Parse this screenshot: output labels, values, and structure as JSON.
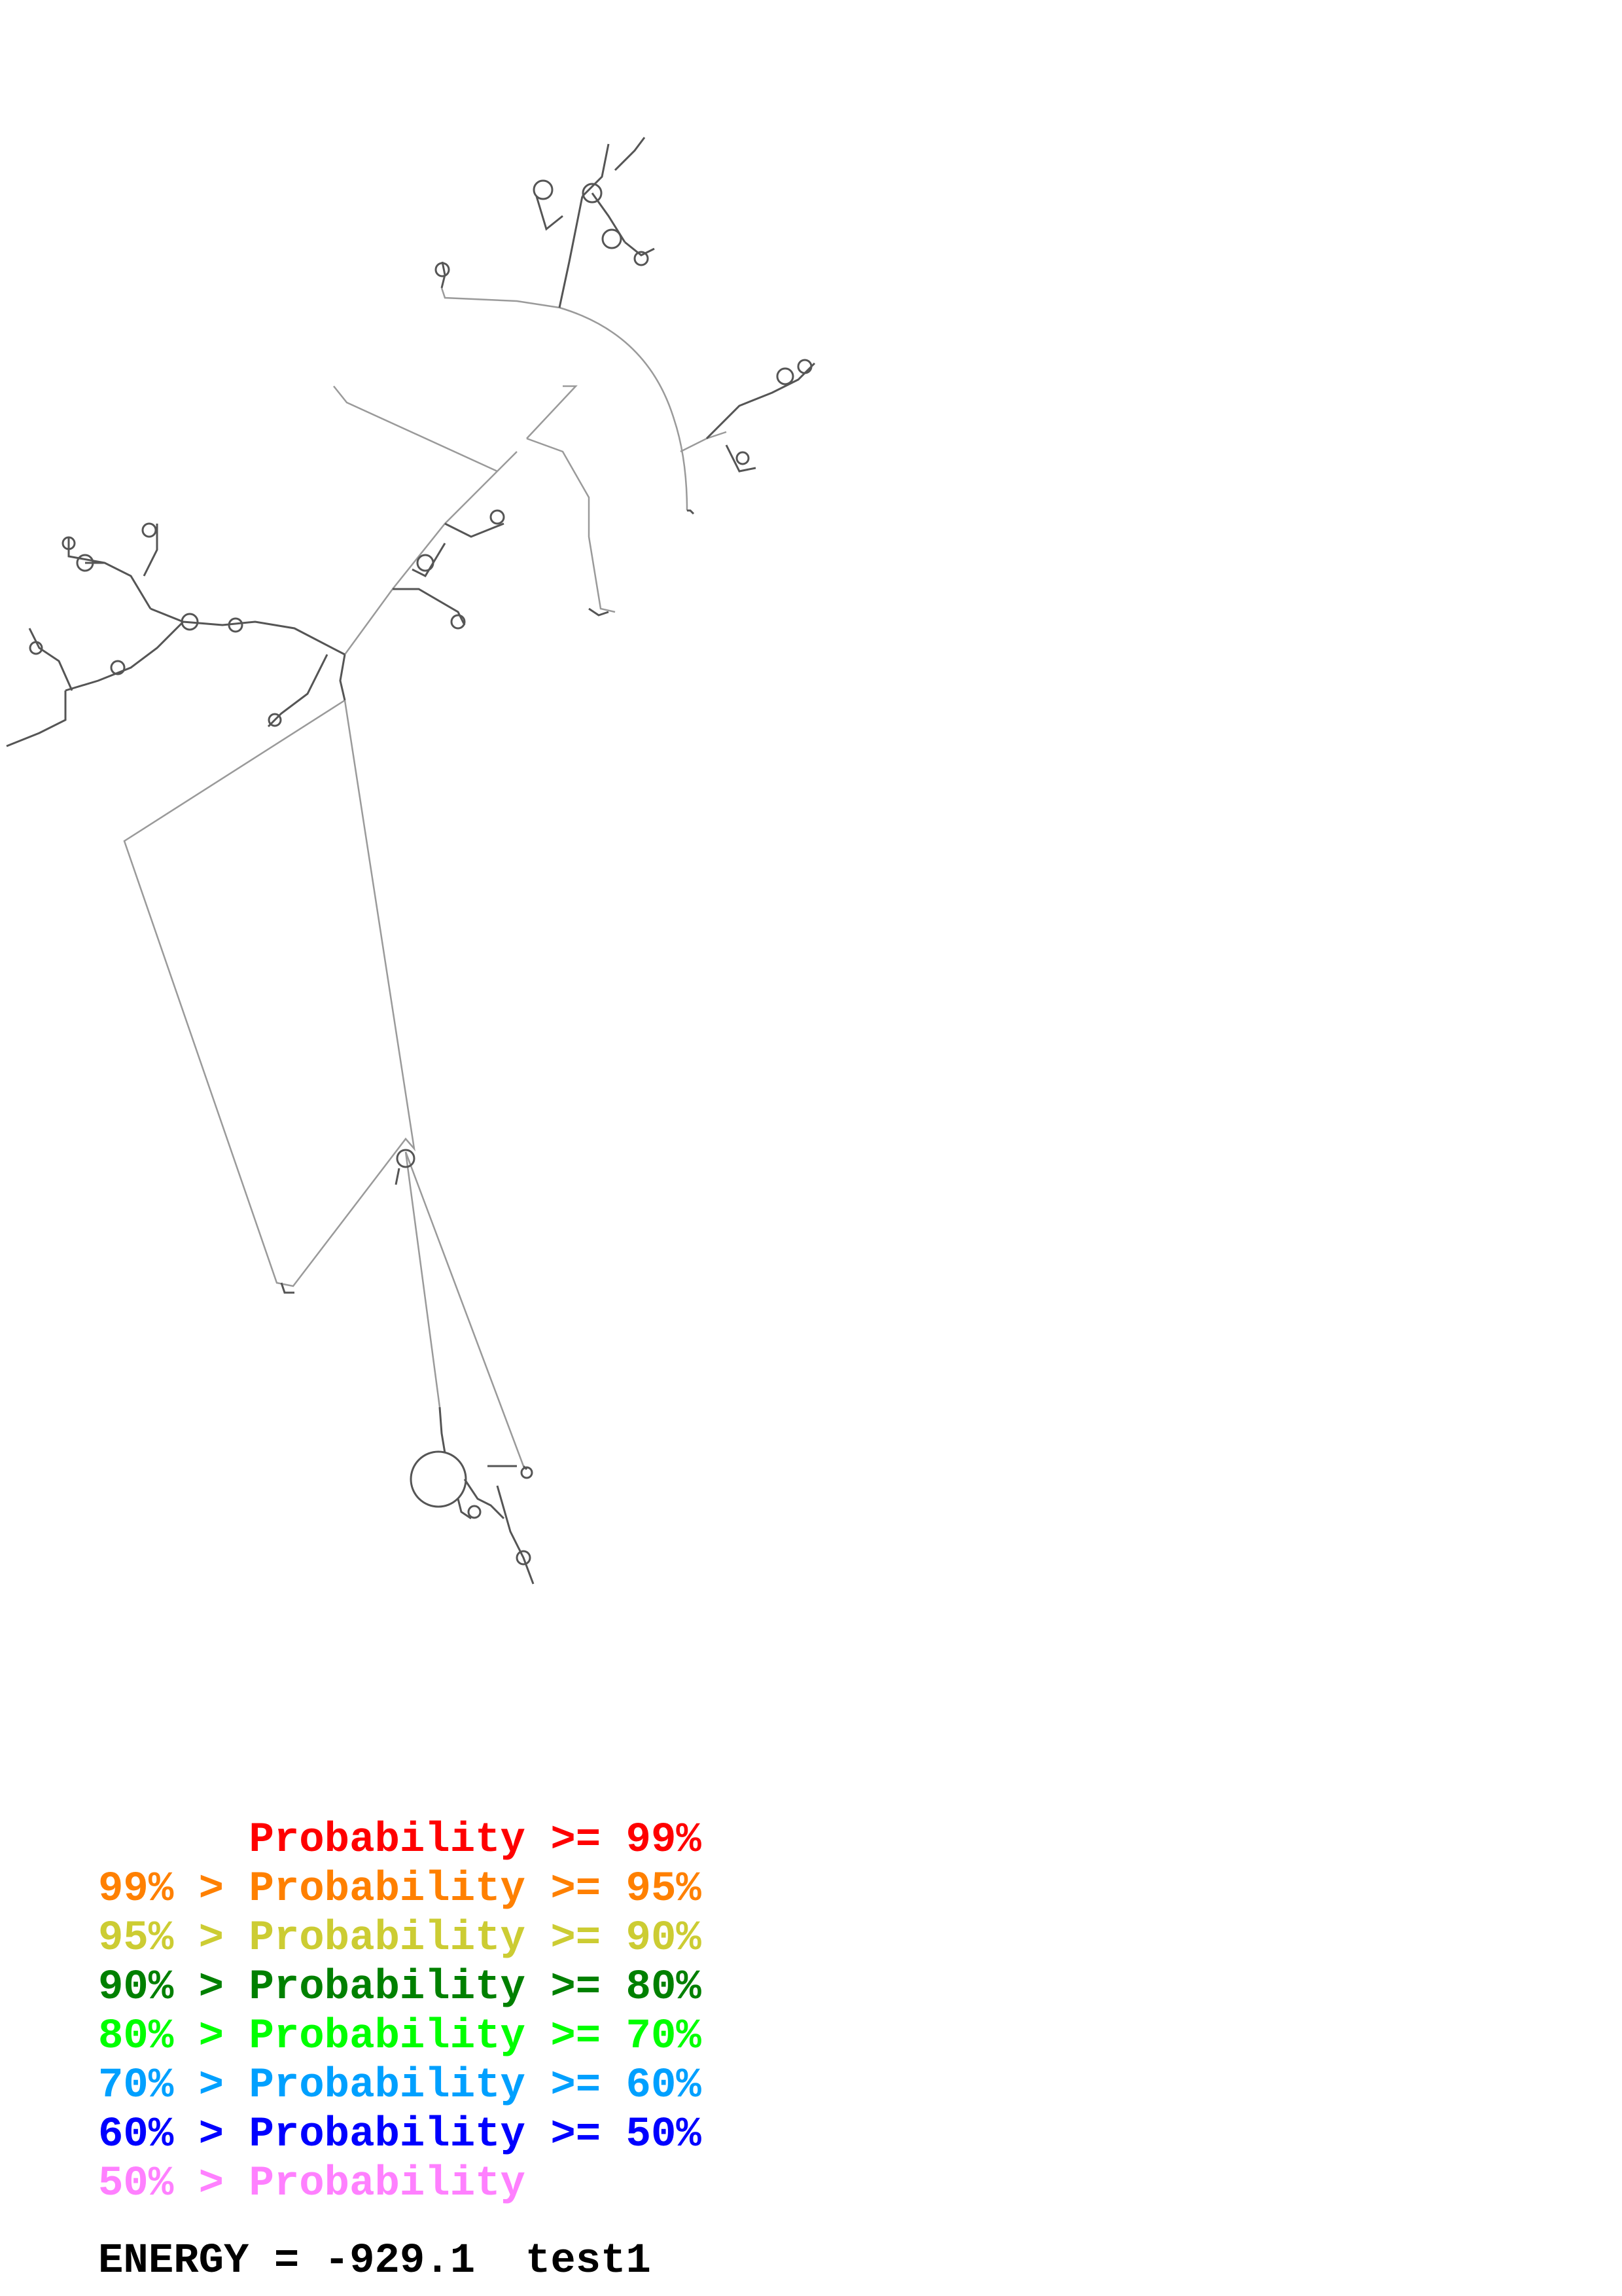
{
  "legend": {
    "rows": [
      {
        "prefix": "      ",
        "label": "Probability >= 99%",
        "color": "#ff0000"
      },
      {
        "prefix": "99% > ",
        "label": "Probability >= 95%",
        "color": "#ff8000"
      },
      {
        "prefix": "95% > ",
        "label": "Probability >= 90%",
        "color": "#cccc33"
      },
      {
        "prefix": "90% > ",
        "label": "Probability >= 80%",
        "color": "#008000"
      },
      {
        "prefix": "80% > ",
        "label": "Probability >= 70%",
        "color": "#00ff00"
      },
      {
        "prefix": "70% > ",
        "label": "Probability >= 60%",
        "color": "#00a0ff"
      },
      {
        "prefix": "60% > ",
        "label": "Probability >= 50%",
        "color": "#0000ff"
      },
      {
        "prefix": "50% > ",
        "label": "Probability",
        "color": "#ff80ff"
      }
    ]
  },
  "footer": {
    "energy": "ENERGY = -929.1",
    "name": "test1"
  },
  "colors": {
    "backbone": "#808080",
    "text": "#000000"
  }
}
